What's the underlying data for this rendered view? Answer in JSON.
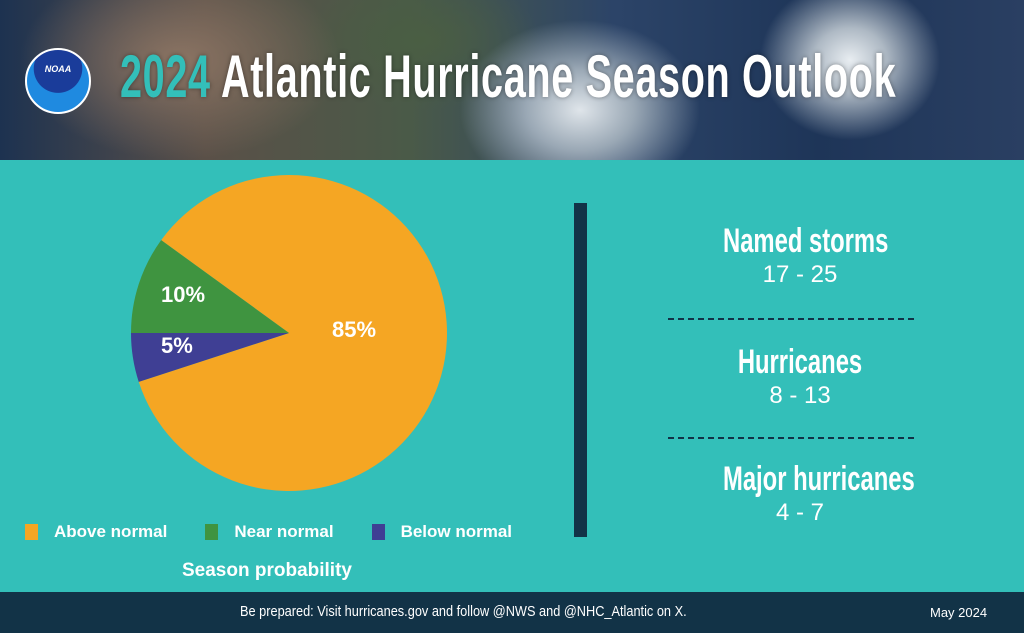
{
  "header": {
    "logo_text": "NOAA",
    "title_year": "2024",
    "title_rest": "Atlantic Hurricane Season Outlook"
  },
  "chart_data": {
    "type": "pie",
    "title": "Season probability",
    "slices": [
      {
        "name": "Above normal",
        "value": 85,
        "label": "85%",
        "color": "#f5a623"
      },
      {
        "name": "Near normal",
        "value": 10,
        "label": "10%",
        "color": "#3f9440"
      },
      {
        "name": "Below normal",
        "value": 5,
        "label": "5%",
        "color": "#3f3f94"
      }
    ],
    "legend": "bottom"
  },
  "stats": [
    {
      "label": "Named storms",
      "range": "17 - 25"
    },
    {
      "label": "Hurricanes",
      "range": "8 - 13"
    },
    {
      "label": "Major hurricanes",
      "range": "4 - 7"
    }
  ],
  "footer": {
    "message": "Be prepared: Visit hurricanes.gov and follow @NWS and @NHC_Atlantic on X.",
    "date": "May  2024"
  },
  "colors": {
    "background": "#33bfb9",
    "dark": "#123347"
  }
}
